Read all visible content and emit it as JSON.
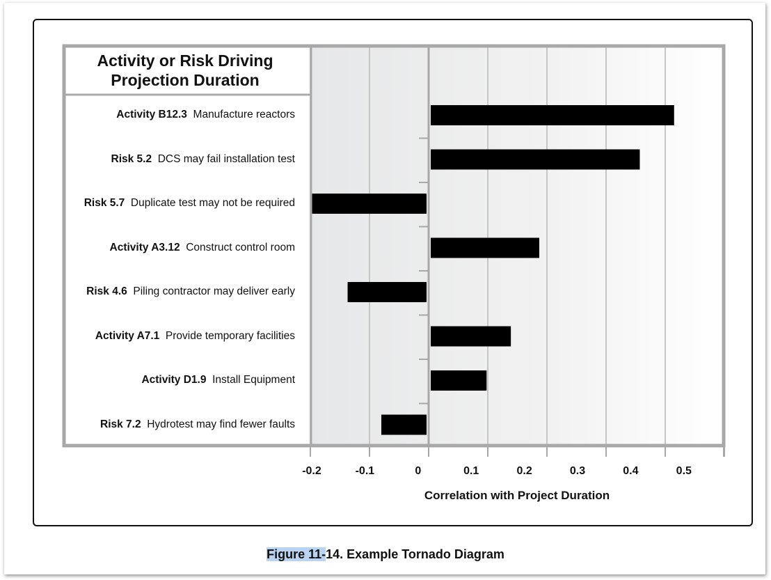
{
  "chart_data": {
    "type": "bar",
    "orientation": "horizontal",
    "header": [
      "Activity or Risk Driving",
      "Projection Duration"
    ],
    "categories": [
      {
        "id": "Activity B12.3",
        "desc": "Manufacture reactors"
      },
      {
        "id": "Risk 5.2",
        "desc": "DCS may fail installation test"
      },
      {
        "id": "Risk 5.7",
        "desc": "Duplicate test may not be required"
      },
      {
        "id": "Activity A3.12",
        "desc": "Construct control room"
      },
      {
        "id": "Risk 4.6",
        "desc": "Piling contractor may deliver early"
      },
      {
        "id": "Activity A7.1",
        "desc": "Provide temporary facilities"
      },
      {
        "id": "Activity D1.9",
        "desc": "Install Equipment"
      },
      {
        "id": "Risk 7.2",
        "desc": "Hydrotest may find fewer faults"
      }
    ],
    "values": [
      0.415,
      0.357,
      -0.197,
      0.187,
      -0.137,
      0.139,
      0.098,
      -0.08
    ],
    "xlabel": "Correlation with Project Duration",
    "xlim": [
      -0.2,
      0.5
    ],
    "xticks": [
      "-0.2",
      "-0.1",
      "0",
      "0.1",
      "0.2",
      "0.3",
      "0.4",
      "0.5"
    ],
    "grid": true,
    "bar_color": "#000000",
    "frame_color": "#a8a8a8"
  },
  "caption": {
    "highlighted": "Figure 11-",
    "rest": "14. Example Tornado Diagram"
  }
}
